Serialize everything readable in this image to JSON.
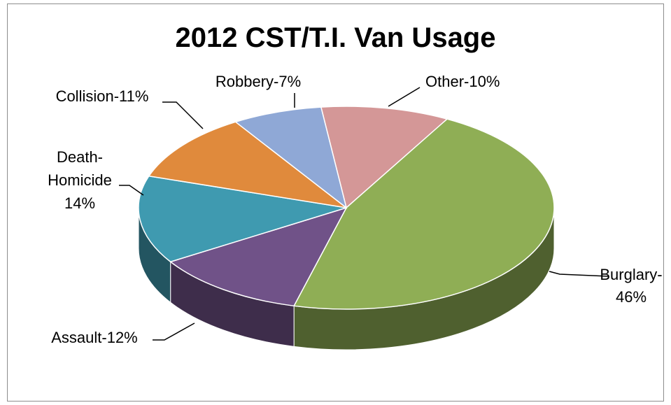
{
  "chart_data": {
    "type": "pie",
    "title": "2012 CST/T.I. Van Usage",
    "slices": [
      {
        "label": [
          "Other-10%"
        ],
        "value": 10,
        "color": "#d49797"
      },
      {
        "label": [
          "Burglary-",
          "46%"
        ],
        "value": 46,
        "color": "#8fae55"
      },
      {
        "label": [
          "Assault-12%"
        ],
        "value": 12,
        "color": "#705288"
      },
      {
        "label": [
          "Death-",
          "Homicide",
          "14%"
        ],
        "value": 14,
        "color": "#3f9ab0"
      },
      {
        "label": [
          "Collision-11%"
        ],
        "value": 11,
        "color": "#e08a3c"
      },
      {
        "label": [
          "Robbery-7%"
        ],
        "value": 7,
        "color": "#8fa8d6"
      }
    ]
  }
}
